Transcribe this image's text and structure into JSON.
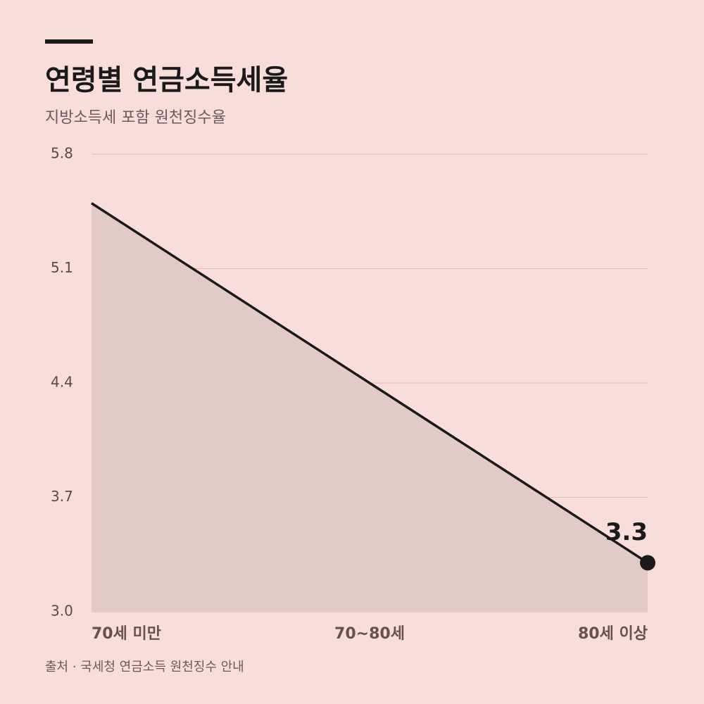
{
  "chart_data": {
    "type": "line",
    "title": "연령별 연금소득세율",
    "subtitle": "지방소득세 포함 원천징수율",
    "categories": [
      "70세 미만",
      "70~80세",
      "80세 이상"
    ],
    "values": [
      5.5,
      4.4,
      3.3
    ],
    "color": "#1a1a1a",
    "area_color": "#e0cbc5",
    "ylim": [
      3.0,
      5.8
    ],
    "yticks": [
      {
        "value": 3.0,
        "label": "3.0"
      },
      3.7,
      4.4,
      5.1,
      5.8
    ],
    "grid": true,
    "source": "출처 · 국세청 연금소득 원천징수 안내"
  }
}
